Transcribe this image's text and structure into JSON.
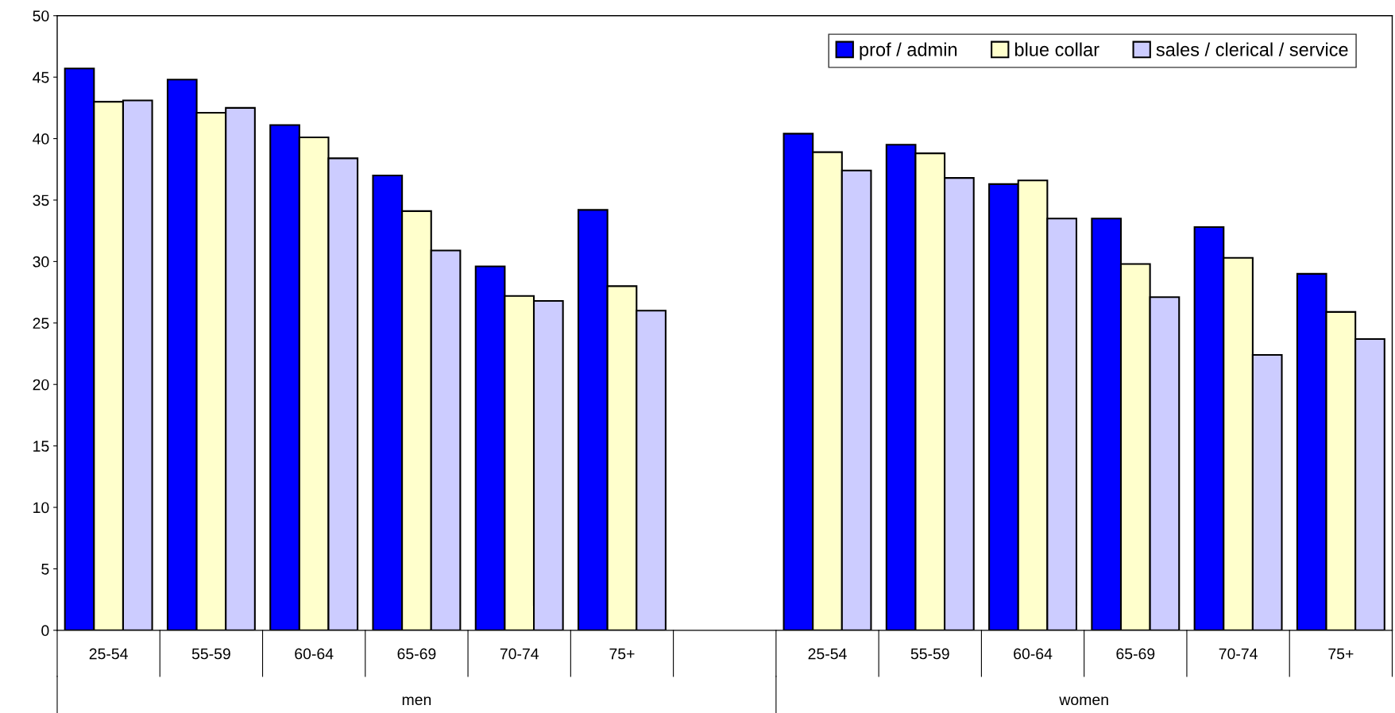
{
  "chart_data": {
    "type": "bar",
    "categories": [
      "25-54",
      "55-59",
      "60-64",
      "65-69",
      "70-74",
      "75+",
      null,
      "25-54",
      "55-59",
      "60-64",
      "65-69",
      "70-74",
      "75+"
    ],
    "series": [
      {
        "name": "prof / admin",
        "color": "#0000ff",
        "values": [
          45.7,
          44.8,
          41.1,
          37.0,
          29.6,
          34.2,
          null,
          40.4,
          39.5,
          36.3,
          33.5,
          32.8,
          29.0
        ]
      },
      {
        "name": "blue collar",
        "color": "#ffffcc",
        "values": [
          43.0,
          42.1,
          40.1,
          34.1,
          27.2,
          28.0,
          null,
          38.9,
          38.8,
          36.6,
          29.8,
          30.3,
          25.9
        ]
      },
      {
        "name": "sales / clerical / service",
        "color": "#ccccff",
        "values": [
          43.1,
          42.5,
          38.4,
          30.9,
          26.8,
          26.0,
          null,
          37.4,
          36.8,
          33.5,
          27.1,
          22.4,
          23.7
        ]
      }
    ],
    "annotations": [
      "men",
      "women"
    ],
    "ylim": [
      0,
      50
    ],
    "yticks": [
      0,
      5,
      10,
      15,
      20,
      25,
      30,
      35,
      40,
      45,
      50
    ],
    "grid": false,
    "legend": "top right"
  }
}
